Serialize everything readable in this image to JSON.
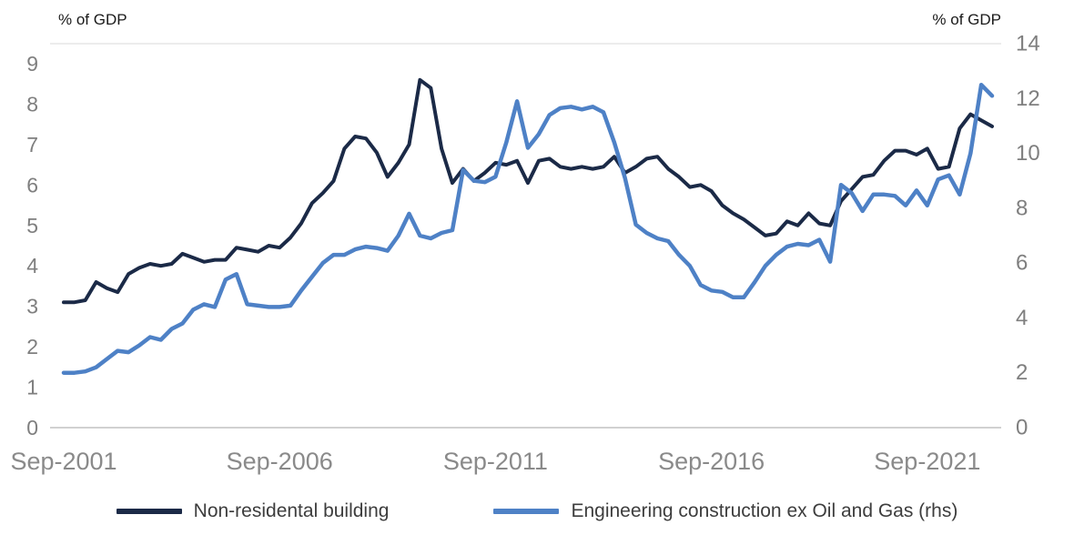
{
  "chart_data": {
    "type": "line",
    "title": "",
    "x_frequency": "quarterly",
    "x_start": "Sep-2001",
    "x_end": "Mar-2023",
    "x_tick_labels": [
      "Sep-2001",
      "Sep-2006",
      "Sep-2011",
      "Sep-2016",
      "Sep-2021"
    ],
    "x_tick_indices": [
      0,
      20,
      40,
      60,
      80
    ],
    "left_axis": {
      "title": "% of GDP",
      "min": 0,
      "max": 9,
      "ticks": [
        0,
        1,
        2,
        3,
        4,
        5,
        6,
        7,
        8,
        9
      ]
    },
    "right_axis": {
      "title": "% of GDP",
      "min": 0,
      "max": 14,
      "ticks": [
        0,
        2,
        4,
        6,
        8,
        10,
        12,
        14
      ]
    },
    "grid": "top and baseline lines only",
    "legend_position": "bottom",
    "series": [
      {
        "name": "Non-residental building",
        "axis": "left",
        "color": "#1b2a47",
        "values": [
          3.1,
          3.1,
          3.15,
          3.6,
          3.45,
          3.35,
          3.8,
          3.95,
          4.05,
          4.0,
          4.05,
          4.3,
          4.2,
          4.1,
          4.15,
          4.15,
          4.45,
          4.4,
          4.35,
          4.5,
          4.45,
          4.7,
          5.05,
          5.55,
          5.8,
          6.1,
          6.9,
          7.2,
          7.15,
          6.8,
          6.2,
          6.55,
          7.0,
          8.6,
          8.4,
          6.9,
          6.05,
          6.4,
          6.1,
          6.3,
          6.55,
          6.5,
          6.6,
          6.05,
          6.6,
          6.65,
          6.45,
          6.4,
          6.45,
          6.4,
          6.45,
          6.7,
          6.3,
          6.45,
          6.65,
          6.7,
          6.4,
          6.2,
          5.95,
          6.0,
          5.85,
          5.5,
          5.3,
          5.15,
          4.95,
          4.75,
          4.8,
          5.1,
          5.0,
          5.3,
          5.05,
          5.0,
          5.6,
          5.9,
          6.2,
          6.25,
          6.6,
          6.85,
          6.85,
          6.75,
          6.9,
          6.4,
          6.45,
          7.4,
          7.75,
          7.6,
          7.45
        ]
      },
      {
        "name": "Engineering construction ex Oil and Gas (rhs)",
        "axis": "right",
        "color": "#4e81c6",
        "values": [
          2.0,
          2.0,
          2.05,
          2.2,
          2.5,
          2.8,
          2.75,
          3.0,
          3.3,
          3.2,
          3.6,
          3.8,
          4.3,
          4.5,
          4.4,
          5.4,
          5.6,
          4.5,
          4.45,
          4.4,
          4.4,
          4.45,
          5.0,
          5.5,
          6.0,
          6.3,
          6.3,
          6.5,
          6.6,
          6.55,
          6.45,
          7.0,
          7.8,
          7.0,
          6.9,
          7.1,
          7.2,
          9.4,
          9.0,
          8.95,
          9.15,
          10.4,
          11.9,
          10.2,
          10.7,
          11.4,
          11.65,
          11.7,
          11.6,
          11.7,
          11.5,
          10.4,
          9.1,
          7.4,
          7.1,
          6.9,
          6.8,
          6.3,
          5.9,
          5.2,
          5.0,
          4.95,
          4.75,
          4.75,
          5.3,
          5.9,
          6.3,
          6.6,
          6.7,
          6.65,
          6.85,
          6.05,
          8.85,
          8.55,
          7.9,
          8.5,
          8.5,
          8.45,
          8.1,
          8.65,
          8.1,
          9.05,
          9.2,
          8.5,
          10.0,
          12.5,
          12.1
        ]
      }
    ]
  }
}
